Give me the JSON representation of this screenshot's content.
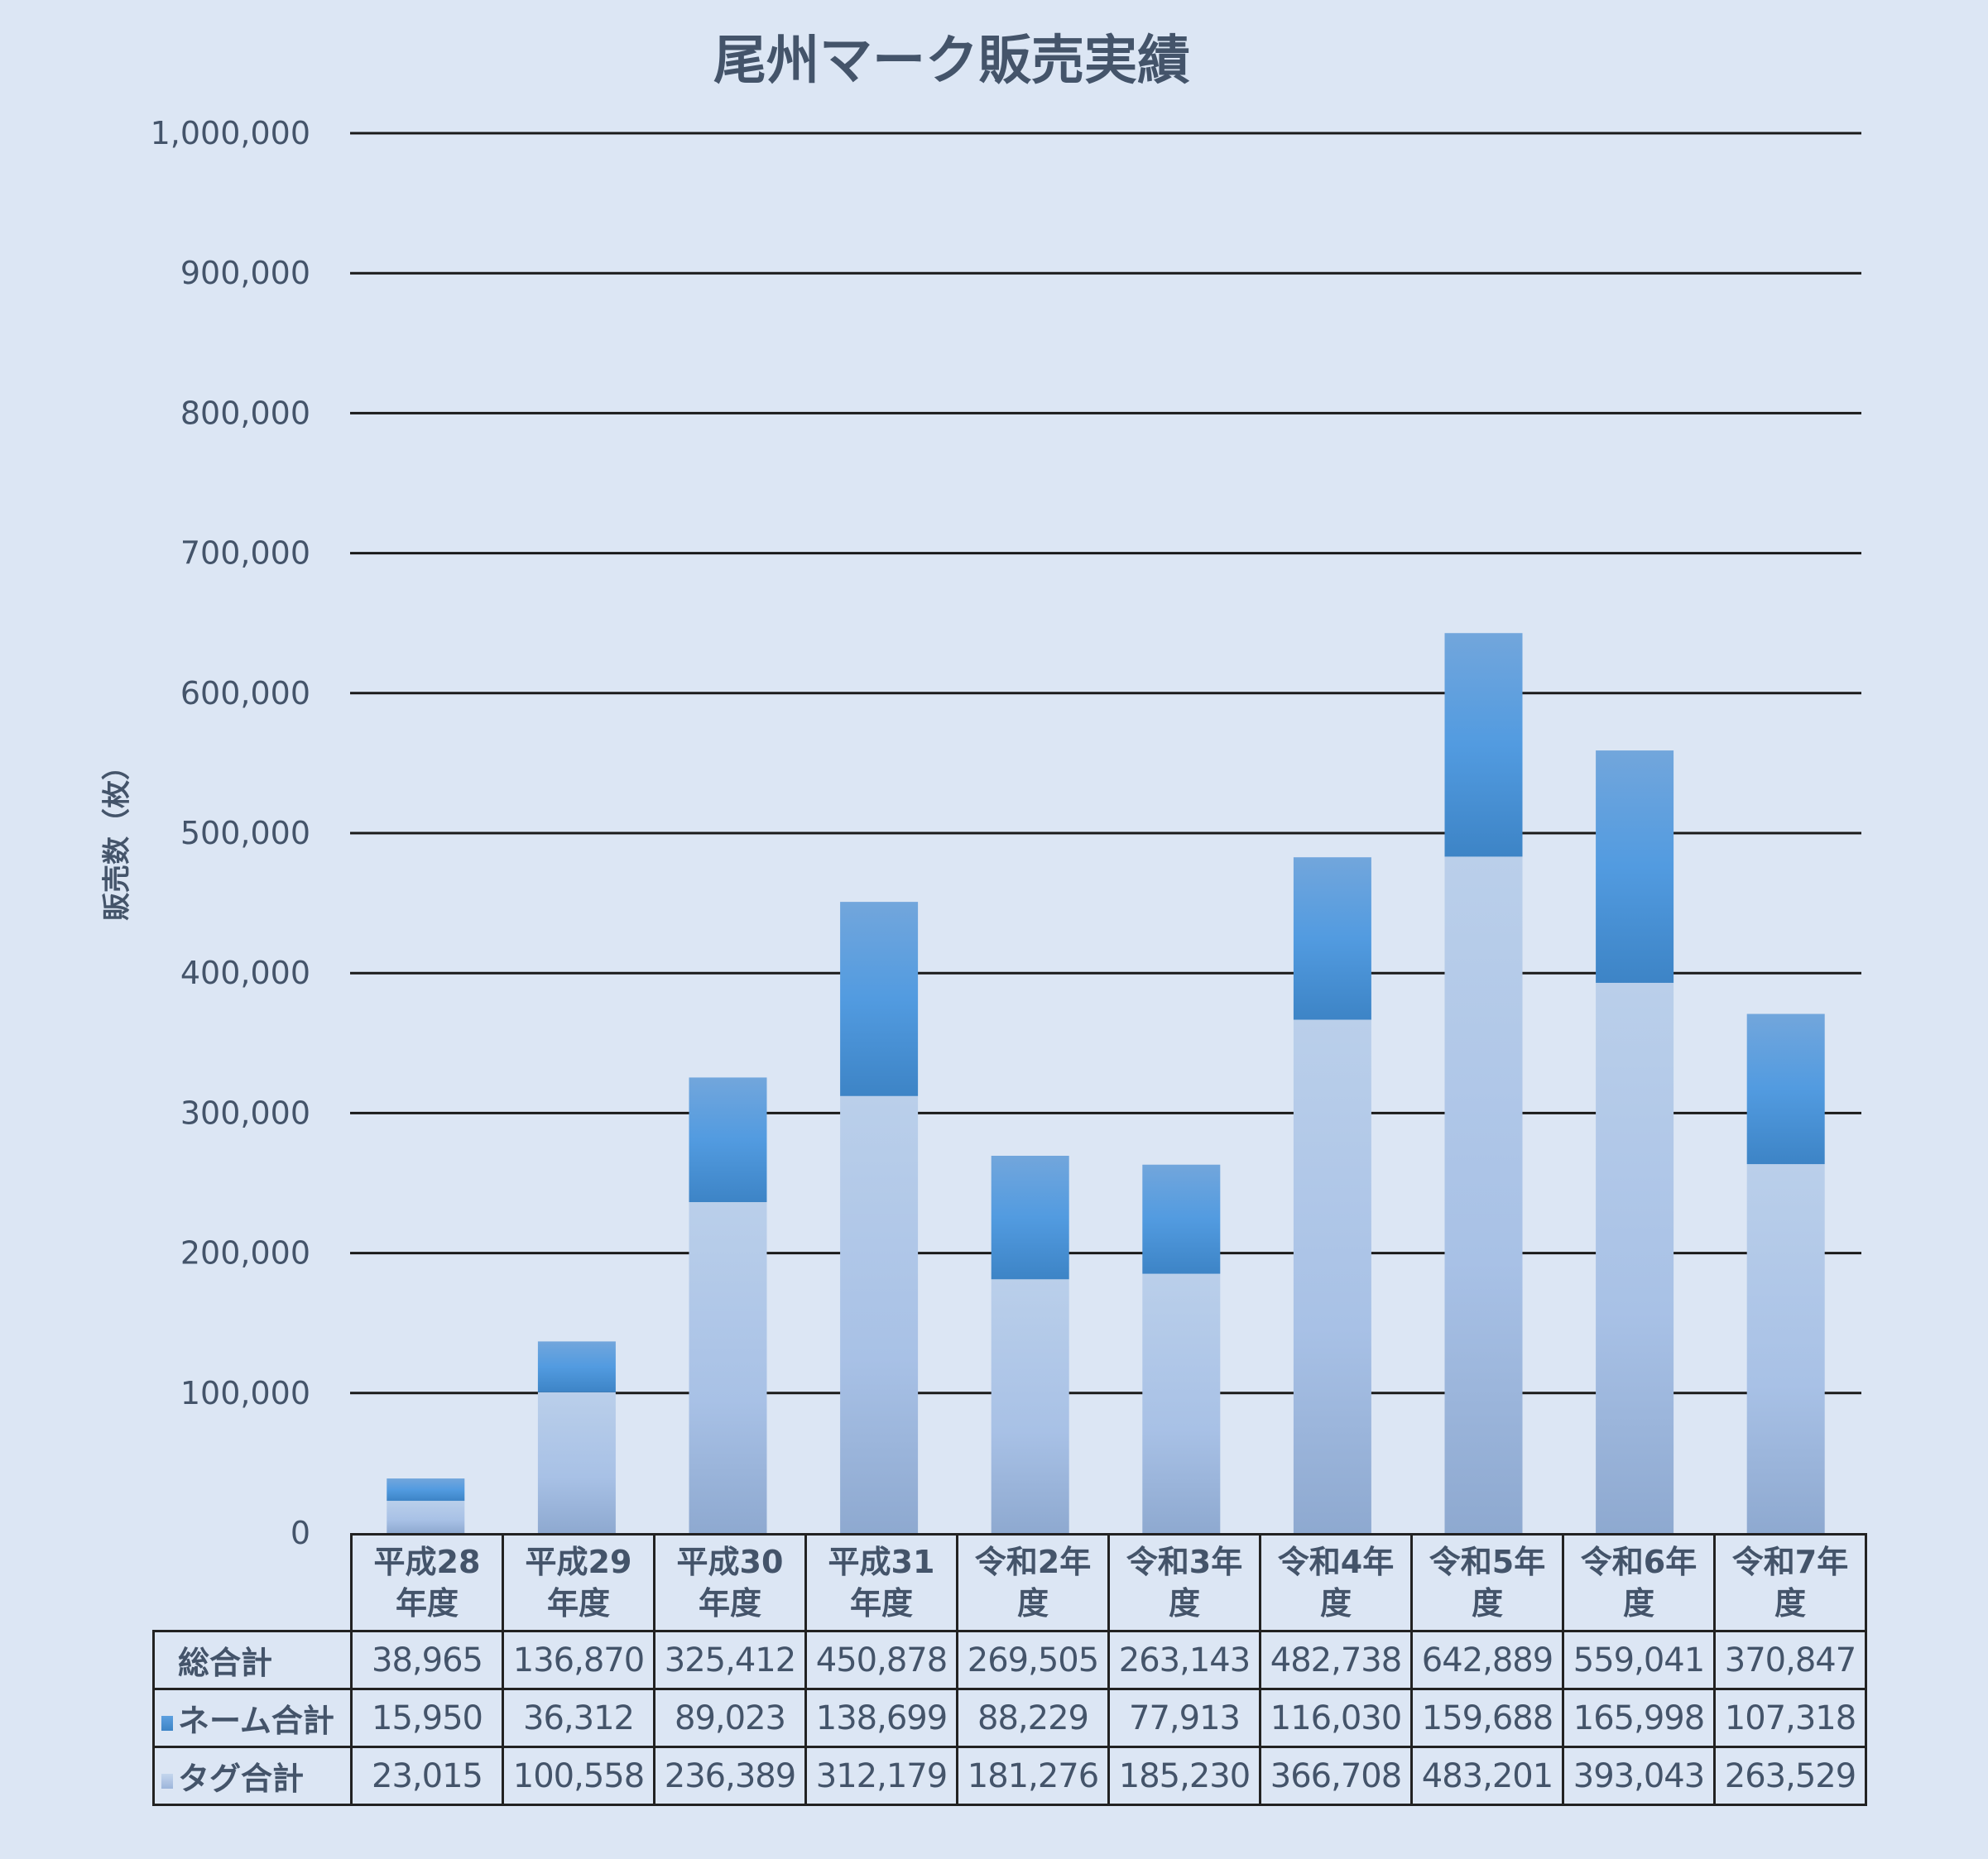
{
  "chart_data": {
    "type": "bar",
    "stacked": true,
    "title": "尾州マーク販売実績",
    "xlabel": "",
    "ylabel": "販売数（枚）",
    "ylim": [
      0,
      1000000
    ],
    "yticks": [
      "0",
      "100,000",
      "200,000",
      "300,000",
      "400,000",
      "500,000",
      "600,000",
      "700,000",
      "800,000",
      "900,000",
      "1,000,000"
    ],
    "ytick_values": [
      0,
      100000,
      200000,
      300000,
      400000,
      500000,
      600000,
      700000,
      800000,
      900000,
      1000000
    ],
    "grid": true,
    "categories": [
      [
        "平成28",
        "年度"
      ],
      [
        "平成29",
        "年度"
      ],
      [
        "平成30",
        "年度"
      ],
      [
        "平成31",
        "年度"
      ],
      [
        "令和2年",
        "度"
      ],
      [
        "令和3年",
        "度"
      ],
      [
        "令和4年",
        "度"
      ],
      [
        "令和5年",
        "度"
      ],
      [
        "令和6年",
        "度"
      ],
      [
        "令和7年",
        "度"
      ]
    ],
    "total": {
      "name": "総合計",
      "values": [
        38965,
        136870,
        325412,
        450878,
        269505,
        263143,
        482738,
        642889,
        559041,
        370847
      ],
      "labels": [
        "38,965",
        "136,870",
        "325,412",
        "450,878",
        "269,505",
        "263,143",
        "482,738",
        "642,889",
        "559,041",
        "370,847"
      ]
    },
    "series": [
      {
        "name": "タグ合計",
        "color": "#a9c1e4",
        "values": [
          23015,
          100558,
          236389,
          312179,
          181276,
          185230,
          366708,
          483201,
          393043,
          263529
        ],
        "labels": [
          "23,015",
          "100,558",
          "236,389",
          "312,179",
          "181,276",
          "185,230",
          "366,708",
          "483,201",
          "393,043",
          "263,529"
        ]
      },
      {
        "name": "ネーム合計",
        "color": "#4a90d2",
        "values": [
          15950,
          36312,
          89023,
          138699,
          88229,
          77913,
          116030,
          159688,
          165998,
          107318
        ],
        "labels": [
          "15,950",
          "36,312",
          "89,023",
          "138,699",
          "88,229",
          "77,913",
          "116,030",
          "159,688",
          "165,998",
          "107,318"
        ]
      }
    ],
    "legend": "data-table"
  }
}
